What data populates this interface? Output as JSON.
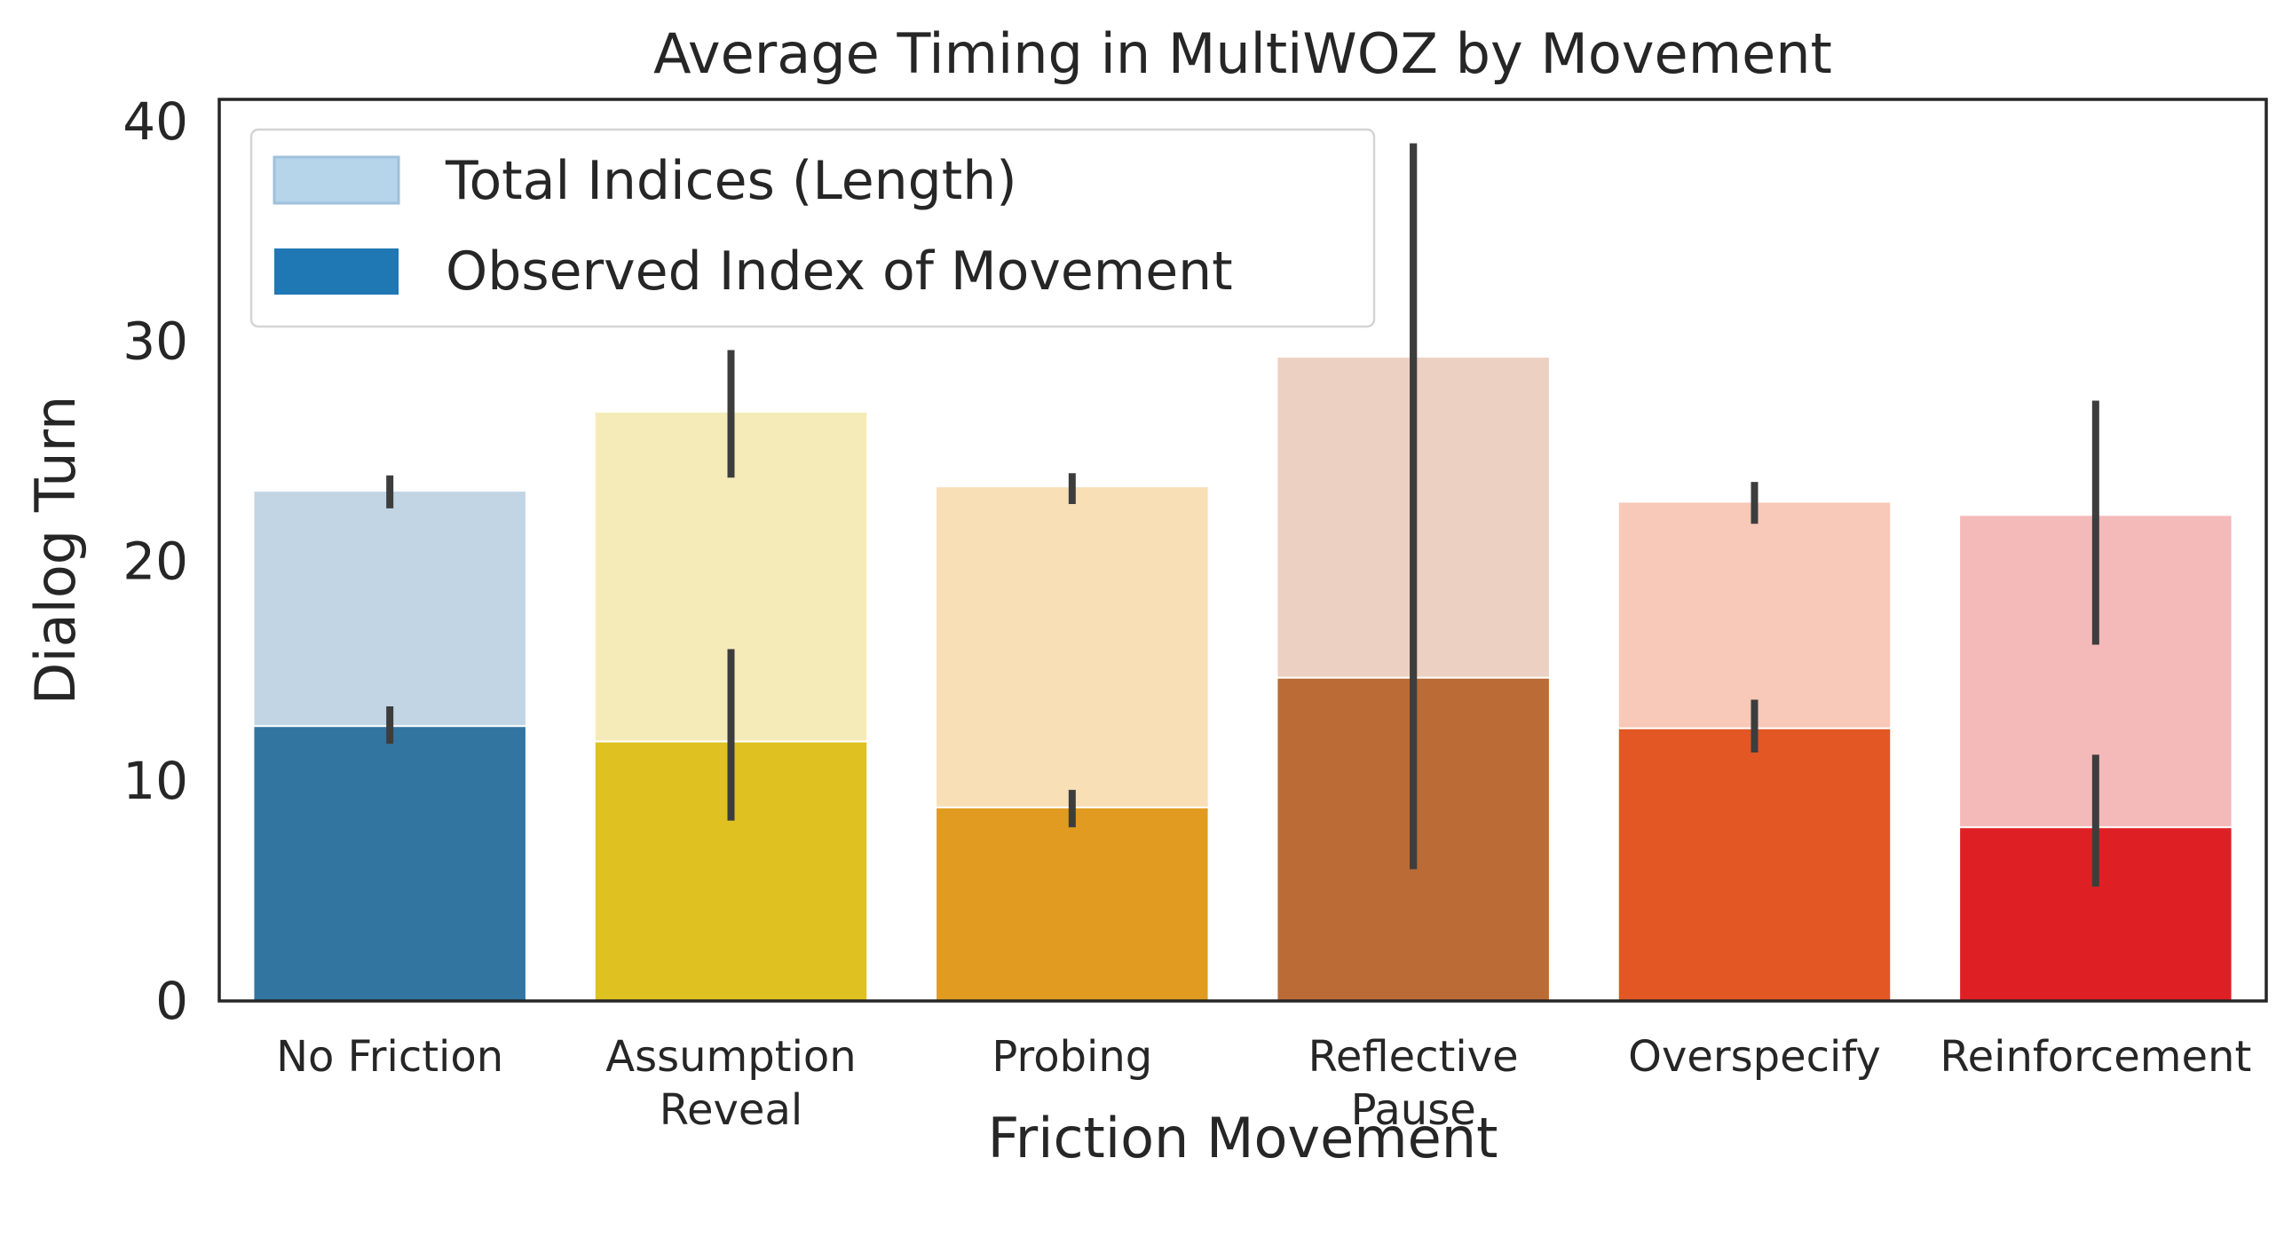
{
  "chart_data": {
    "type": "bar",
    "title": "Average Timing in MultiWOZ by Movement",
    "xlabel": "Friction Movement",
    "ylabel": "Dialog Turn",
    "ylim": [
      0,
      41
    ],
    "yticks": [
      0,
      10,
      20,
      30,
      40
    ],
    "grid": false,
    "legend_position": "top-left",
    "categories": [
      [
        "No Friction"
      ],
      [
        "Assumption",
        "Reveal"
      ],
      [
        "Probing"
      ],
      [
        "Reflective",
        "Pause"
      ],
      [
        "Overspecify"
      ],
      [
        "Reinforcement"
      ]
    ],
    "series": [
      {
        "name": "Total Indices (Length)",
        "style": "light",
        "values": [
          23.2,
          26.8,
          23.4,
          29.3,
          22.7,
          22.1
        ],
        "error_low": [
          22.4,
          23.8,
          22.6,
          6.0,
          21.7,
          16.2
        ],
        "error_high": [
          23.9,
          29.6,
          24.0,
          39.0,
          23.6,
          27.3
        ]
      },
      {
        "name": "Observed Index of Movement",
        "style": "dark",
        "values": [
          12.5,
          11.8,
          8.8,
          14.7,
          12.4,
          7.9
        ],
        "error_low": [
          11.7,
          8.2,
          7.9,
          6.0,
          11.3,
          5.2
        ],
        "error_high": [
          13.4,
          16.0,
          9.6,
          39.0,
          13.7,
          11.2
        ]
      }
    ],
    "colors": {
      "light": [
        "#c1d5e5",
        "#f5ebb9",
        "#f8dfb6",
        "#ecd1c2",
        "#f8c8b8",
        "#f4b9b9"
      ],
      "dark": [
        "#3275a1",
        "#dfc221",
        "#e19b20",
        "#bb6b36",
        "#e25723",
        "#de2024"
      ],
      "legend_light": "#b6d4ea",
      "legend_light_edge": "#9fc1dc",
      "legend_dark": "#1f77b4",
      "errorbar": "#3d3d3d",
      "axis": "#262626"
    }
  }
}
